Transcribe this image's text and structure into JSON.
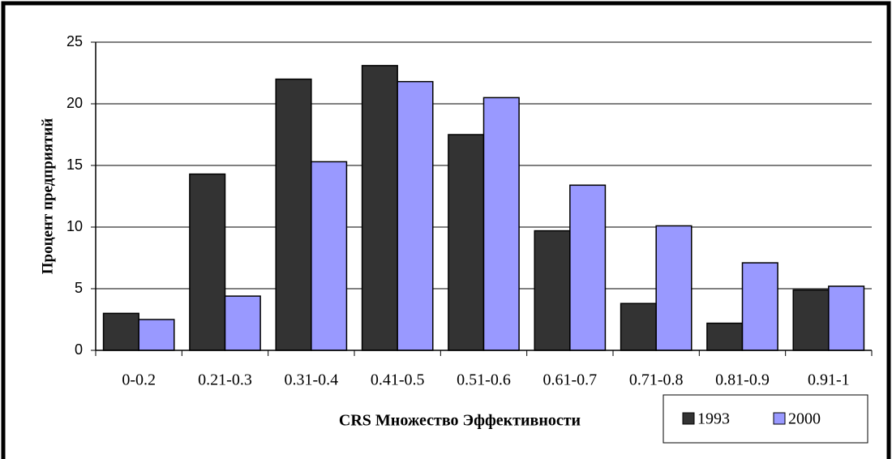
{
  "chart_data": {
    "type": "bar",
    "x_label": "CRS Множество Эффективности",
    "y_label": "Процент предприятий",
    "categories": [
      "0-0.2",
      "0.21-0.3",
      "0.31-0.4",
      "0.41-0.5",
      "0.51-0.6",
      "0.61-0.7",
      "0.71-0.8",
      "0.81-0.9",
      "0.91-1"
    ],
    "series": [
      {
        "name": "1993",
        "color": "#333333",
        "values": [
          3.0,
          14.3,
          22.0,
          23.1,
          17.5,
          9.7,
          3.8,
          2.2,
          4.9
        ]
      },
      {
        "name": "2000",
        "color": "#9999ff",
        "values": [
          2.5,
          4.4,
          15.3,
          21.8,
          20.5,
          13.4,
          10.1,
          7.1,
          5.2
        ]
      }
    ],
    "ylim": [
      0,
      25
    ],
    "yticks": [
      0,
      5,
      10,
      15,
      20,
      25
    ],
    "grid": true,
    "legend": "bottom-right"
  }
}
